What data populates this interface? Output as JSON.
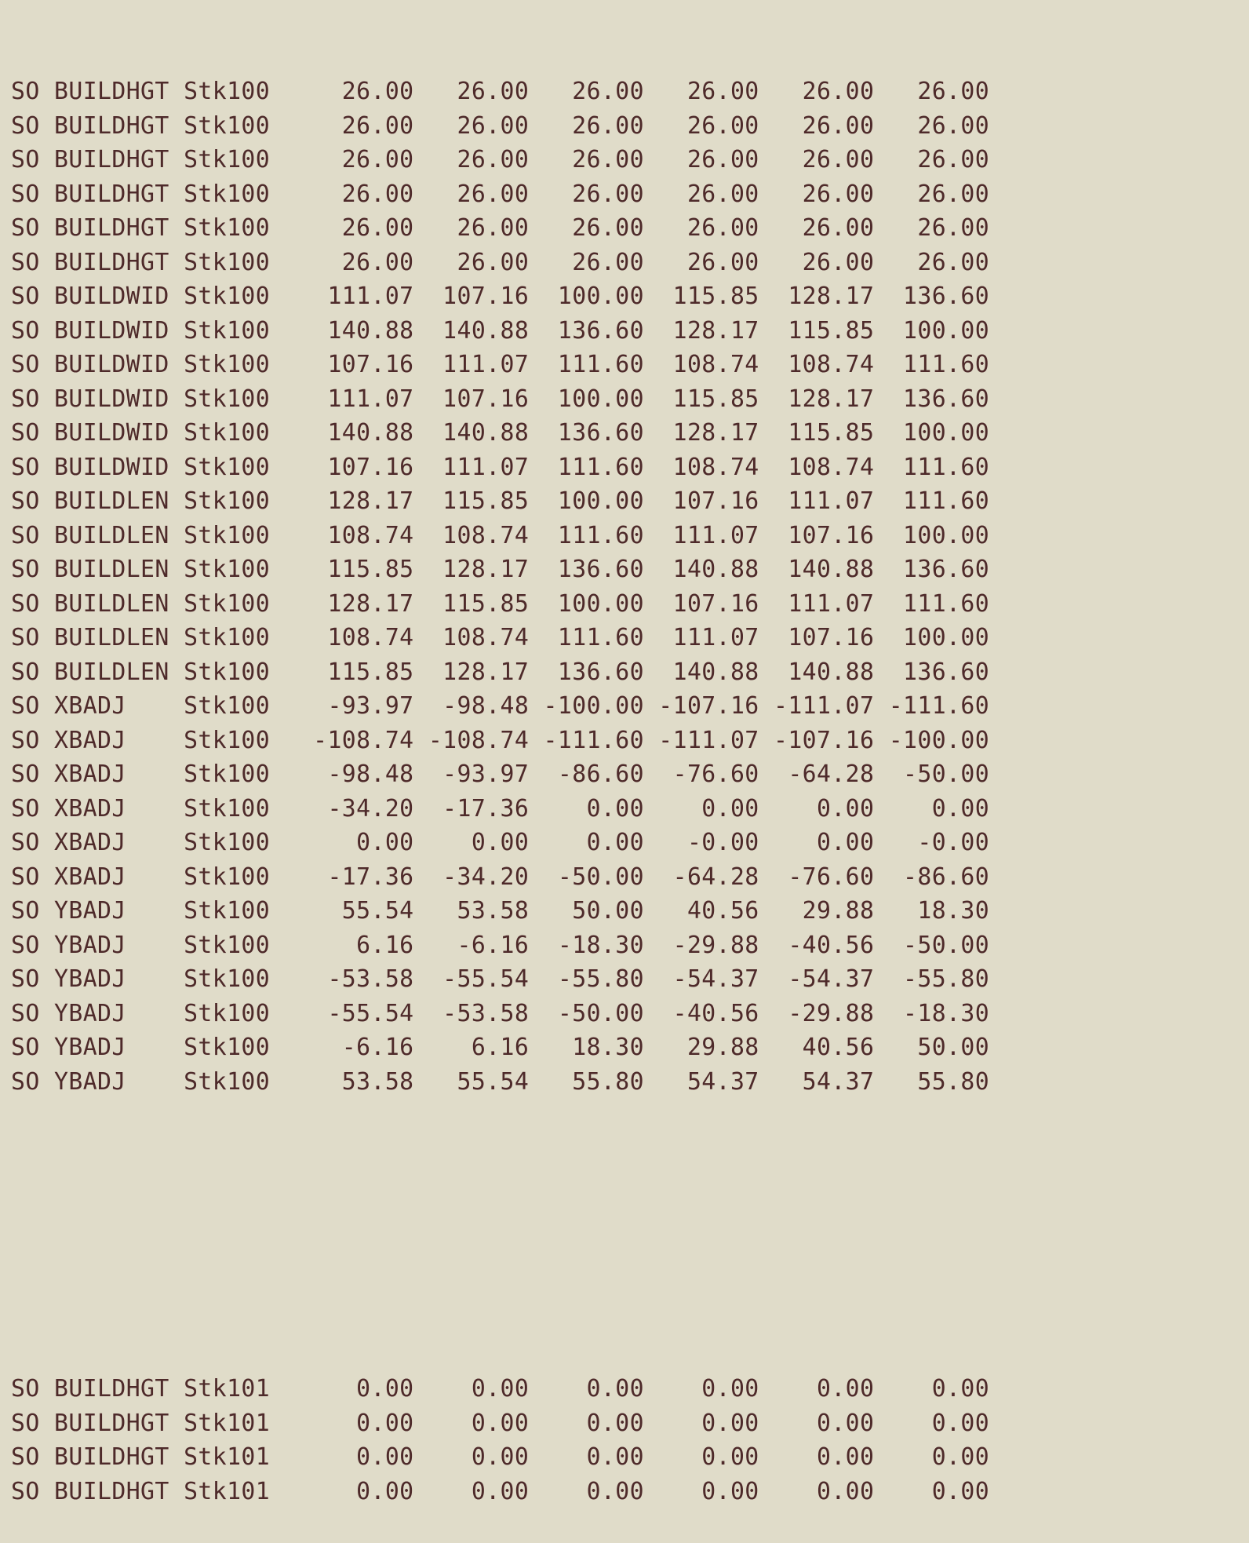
{
  "document": {
    "groups": [
      {
        "stack": "Stk100",
        "lines": [
          "SO BUILDHGT Stk100     26.00   26.00   26.00   26.00   26.00   26.00",
          "SO BUILDHGT Stk100     26.00   26.00   26.00   26.00   26.00   26.00",
          "SO BUILDHGT Stk100     26.00   26.00   26.00   26.00   26.00   26.00",
          "SO BUILDHGT Stk100     26.00   26.00   26.00   26.00   26.00   26.00",
          "SO BUILDHGT Stk100     26.00   26.00   26.00   26.00   26.00   26.00",
          "SO BUILDHGT Stk100     26.00   26.00   26.00   26.00   26.00   26.00",
          "SO BUILDWID Stk100    111.07  107.16  100.00  115.85  128.17  136.60",
          "SO BUILDWID Stk100    140.88  140.88  136.60  128.17  115.85  100.00",
          "SO BUILDWID Stk100    107.16  111.07  111.60  108.74  108.74  111.60",
          "SO BUILDWID Stk100    111.07  107.16  100.00  115.85  128.17  136.60",
          "SO BUILDWID Stk100    140.88  140.88  136.60  128.17  115.85  100.00",
          "SO BUILDWID Stk100    107.16  111.07  111.60  108.74  108.74  111.60",
          "SO BUILDLEN Stk100    128.17  115.85  100.00  107.16  111.07  111.60",
          "SO BUILDLEN Stk100    108.74  108.74  111.60  111.07  107.16  100.00",
          "SO BUILDLEN Stk100    115.85  128.17  136.60  140.88  140.88  136.60",
          "SO BUILDLEN Stk100    128.17  115.85  100.00  107.16  111.07  111.60",
          "SO BUILDLEN Stk100    108.74  108.74  111.60  111.07  107.16  100.00",
          "SO BUILDLEN Stk100    115.85  128.17  136.60  140.88  140.88  136.60",
          "SO XBADJ    Stk100    -93.97  -98.48 -100.00 -107.16 -111.07 -111.60",
          "SO XBADJ    Stk100   -108.74 -108.74 -111.60 -111.07 -107.16 -100.00",
          "SO XBADJ    Stk100    -98.48  -93.97  -86.60  -76.60  -64.28  -50.00",
          "SO XBADJ    Stk100    -34.20  -17.36    0.00    0.00    0.00    0.00",
          "SO XBADJ    Stk100      0.00    0.00    0.00   -0.00    0.00   -0.00",
          "SO XBADJ    Stk100    -17.36  -34.20  -50.00  -64.28  -76.60  -86.60",
          "SO YBADJ    Stk100     55.54   53.58   50.00   40.56   29.88   18.30",
          "SO YBADJ    Stk100      6.16   -6.16  -18.30  -29.88  -40.56  -50.00",
          "SO YBADJ    Stk100    -53.58  -55.54  -55.80  -54.37  -54.37  -55.80",
          "SO YBADJ    Stk100    -55.54  -53.58  -50.00  -40.56  -29.88  -18.30",
          "SO YBADJ    Stk100     -6.16    6.16   18.30   29.88   40.56   50.00",
          "SO YBADJ    Stk100     53.58   55.54   55.80   54.37   54.37   55.80"
        ]
      },
      {
        "stack": "Stk101",
        "lines": [
          "SO BUILDHGT Stk101      0.00    0.00    0.00    0.00    0.00    0.00",
          "SO BUILDHGT Stk101      0.00    0.00    0.00    0.00    0.00    0.00",
          "SO BUILDHGT Stk101      0.00    0.00    0.00    0.00    0.00    0.00",
          "SO BUILDHGT Stk101      0.00    0.00    0.00    0.00    0.00    0.00"
        ]
      }
    ]
  }
}
